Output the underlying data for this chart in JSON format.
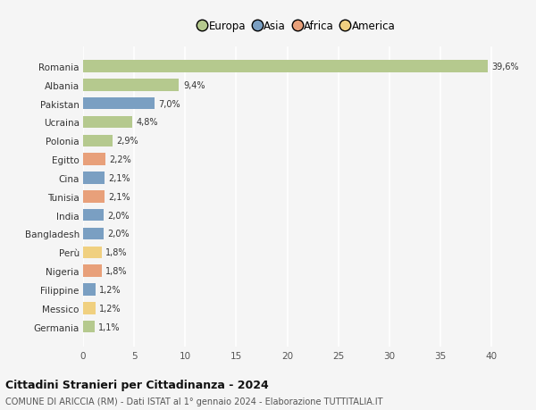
{
  "countries": [
    "Romania",
    "Albania",
    "Pakistan",
    "Ucraina",
    "Polonia",
    "Egitto",
    "Cina",
    "Tunisia",
    "India",
    "Bangladesh",
    "Perù",
    "Nigeria",
    "Filippine",
    "Messico",
    "Germania"
  ],
  "values": [
    39.6,
    9.4,
    7.0,
    4.8,
    2.9,
    2.2,
    2.1,
    2.1,
    2.0,
    2.0,
    1.8,
    1.8,
    1.2,
    1.2,
    1.1
  ],
  "labels": [
    "39,6%",
    "9,4%",
    "7,0%",
    "4,8%",
    "2,9%",
    "2,2%",
    "2,1%",
    "2,1%",
    "2,0%",
    "2,0%",
    "1,8%",
    "1,8%",
    "1,2%",
    "1,2%",
    "1,1%"
  ],
  "continents": [
    "Europa",
    "Europa",
    "Asia",
    "Europa",
    "Europa",
    "Africa",
    "Asia",
    "Africa",
    "Asia",
    "Asia",
    "America",
    "Africa",
    "Asia",
    "America",
    "Europa"
  ],
  "colors": {
    "Europa": "#b5c98e",
    "Asia": "#7a9fc2",
    "Africa": "#e8a07a",
    "America": "#f0d080"
  },
  "legend_order": [
    "Europa",
    "Asia",
    "Africa",
    "America"
  ],
  "title": "Cittadini Stranieri per Cittadinanza - 2024",
  "subtitle": "COMUNE DI ARICCIA (RM) - Dati ISTAT al 1° gennaio 2024 - Elaborazione TUTTITALIA.IT",
  "xlim": [
    0,
    42
  ],
  "xticks": [
    0,
    5,
    10,
    15,
    20,
    25,
    30,
    35,
    40
  ],
  "background_color": "#f5f5f5",
  "grid_color": "#ffffff",
  "bar_height": 0.65
}
